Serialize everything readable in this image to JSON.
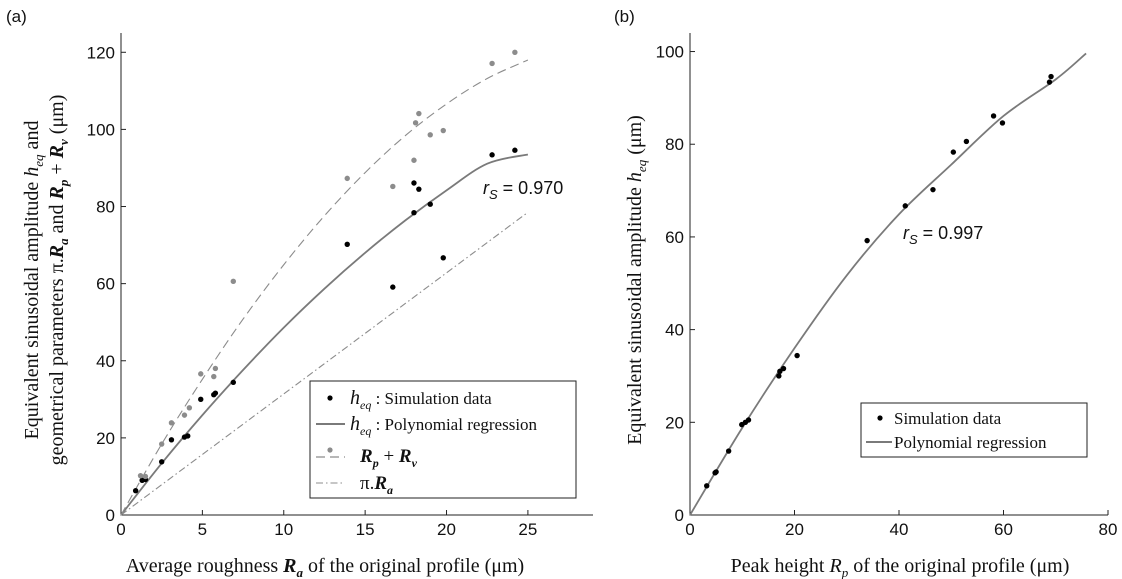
{
  "chart_data": [
    {
      "panel": "(a)",
      "type": "scatter",
      "xlabel": "Average roughness R_a of the original profile (μm)",
      "ylabel": "Equivalent sinusoidal amplitude h_eq and geometrical parameters π.R_a and R_p + R_v (μm)",
      "xlim": [
        0,
        29
      ],
      "ylim": [
        0,
        125
      ],
      "xticks": [
        0,
        5,
        10,
        15,
        20,
        25
      ],
      "yticks": [
        0,
        20,
        40,
        60,
        80,
        100,
        120
      ],
      "annotation": {
        "prefix": "r",
        "sub": "S",
        "text": " = 0.970"
      },
      "legend_position": "bottom-right",
      "legend": [
        {
          "label": "h_eq : Simulation data"
        },
        {
          "label": "h_eq : Polynomial regression"
        },
        {
          "label": "R_p + R_v"
        },
        {
          "label": "π.R_a"
        }
      ],
      "series": [
        {
          "key": "heq_sim",
          "kind": "scatter",
          "color": "#000000",
          "points": [
            [
              0.9,
              6.3
            ],
            [
              1.3,
              9.0
            ],
            [
              1.5,
              9.2
            ],
            [
              2.5,
              13.8
            ],
            [
              3.1,
              19.5
            ],
            [
              3.9,
              20.2
            ],
            [
              4.1,
              20.5
            ],
            [
              4.9,
              30.0
            ],
            [
              5.7,
              31.2
            ],
            [
              5.8,
              31.6
            ],
            [
              6.9,
              34.4
            ],
            [
              13.9,
              70.2
            ],
            [
              16.7,
              59.1
            ],
            [
              18.0,
              78.4
            ],
            [
              18.0,
              86.1
            ],
            [
              18.3,
              84.5
            ],
            [
              19.0,
              80.6
            ],
            [
              19.8,
              66.7
            ],
            [
              22.8,
              93.4
            ],
            [
              24.2,
              94.6
            ]
          ]
        },
        {
          "key": "rprv",
          "kind": "scatter",
          "color": "#8c8c8c",
          "points": [
            [
              1.2,
              10.2
            ],
            [
              1.5,
              10.0
            ],
            [
              2.5,
              18.4
            ],
            [
              3.1,
              23.9
            ],
            [
              3.9,
              25.9
            ],
            [
              4.2,
              27.8
            ],
            [
              4.9,
              36.6
            ],
            [
              5.7,
              35.9
            ],
            [
              5.8,
              38.0
            ],
            [
              6.9,
              60.6
            ],
            [
              13.9,
              87.3
            ],
            [
              16.7,
              85.2
            ],
            [
              18.0,
              92.0
            ],
            [
              18.1,
              101.7
            ],
            [
              18.3,
              104.1
            ],
            [
              19.0,
              98.6
            ],
            [
              19.8,
              99.7
            ],
            [
              22.8,
              117.1
            ],
            [
              24.2,
              120.0
            ]
          ]
        },
        {
          "key": "heq_fit",
          "kind": "line",
          "color": "#7a7a7a",
          "dash": "",
          "points": [
            [
              0,
              0
            ],
            [
              2.5,
              13.4
            ],
            [
              5,
              25.9
            ],
            [
              7.5,
              37.6
            ],
            [
              10,
              48.6
            ],
            [
              12.5,
              58.7
            ],
            [
              15,
              68.0
            ],
            [
              17.5,
              76.5
            ],
            [
              20,
              84.2
            ],
            [
              22.5,
              91.1
            ],
            [
              25,
              93.5
            ]
          ]
        },
        {
          "key": "rprv_fit",
          "kind": "line",
          "color": "#8c8c8c",
          "dash": "9 5",
          "points": [
            [
              0,
              0
            ],
            [
              2.5,
              18.4
            ],
            [
              5,
              35.2
            ],
            [
              7.5,
              50.8
            ],
            [
              10,
              64.9
            ],
            [
              12.5,
              77.6
            ],
            [
              15,
              88.8
            ],
            [
              17.5,
              98.5
            ],
            [
              20,
              106.6
            ],
            [
              22.5,
              113.2
            ],
            [
              25,
              118.0
            ]
          ]
        },
        {
          "key": "pira",
          "kind": "line",
          "color": "#8c8c8c",
          "dash": "7 3 1.5 3",
          "points": [
            [
              0,
              0
            ],
            [
              25,
              78.5
            ]
          ]
        }
      ]
    },
    {
      "panel": "(b)",
      "type": "scatter",
      "xlabel": "Peak height R_p of the original profile (μm)",
      "ylabel": "Equivalent sinusoidal amplitude h_eq (μm)",
      "xlim": [
        0,
        80
      ],
      "ylim": [
        0,
        104
      ],
      "xticks": [
        0,
        20,
        40,
        60,
        80
      ],
      "yticks": [
        0,
        20,
        40,
        60,
        80,
        100
      ],
      "annotation": {
        "prefix": "r",
        "sub": "S",
        "text": " = 0.997"
      },
      "legend_position": "bottom-right",
      "legend": [
        {
          "label": "Simulation data"
        },
        {
          "label": "Polynomial regression"
        }
      ],
      "series": [
        {
          "key": "sim",
          "kind": "scatter",
          "color": "#000000",
          "points": [
            [
              3.2,
              6.3
            ],
            [
              4.8,
              9.1
            ],
            [
              5.0,
              9.3
            ],
            [
              7.4,
              13.8
            ],
            [
              9.9,
              19.5
            ],
            [
              10.6,
              20.0
            ],
            [
              11.2,
              20.5
            ],
            [
              17.0,
              30.0
            ],
            [
              17.2,
              31.0
            ],
            [
              17.9,
              31.6
            ],
            [
              20.5,
              34.4
            ],
            [
              33.9,
              59.2
            ],
            [
              41.2,
              66.7
            ],
            [
              46.5,
              70.2
            ],
            [
              50.4,
              78.3
            ],
            [
              52.9,
              80.6
            ],
            [
              58.1,
              86.1
            ],
            [
              59.8,
              84.6
            ],
            [
              68.8,
              93.4
            ],
            [
              69.1,
              94.6
            ]
          ]
        },
        {
          "key": "fit",
          "kind": "line",
          "color": "#7a7a7a",
          "dash": "",
          "points": [
            [
              0,
              0
            ],
            [
              10,
              18.8
            ],
            [
              20,
              36.0
            ],
            [
              30,
              51.7
            ],
            [
              40,
              64.9
            ],
            [
              50,
              75.6
            ],
            [
              60,
              86.1
            ],
            [
              70,
              94.0
            ],
            [
              75.8,
              99.6
            ]
          ]
        }
      ]
    }
  ]
}
